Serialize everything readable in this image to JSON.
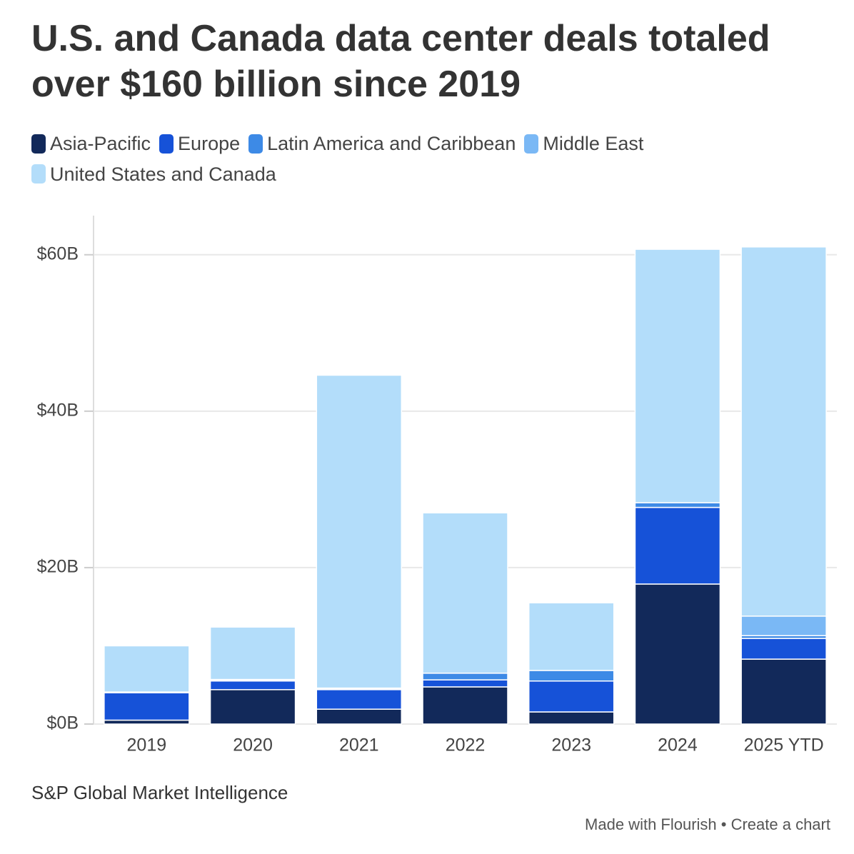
{
  "chart_data": {
    "type": "stacked_bar",
    "title": "U.S. and Canada data center deals totaled over $160 billion since 2019",
    "categories": [
      "2019",
      "2020",
      "2021",
      "2022",
      "2023",
      "2024",
      "2025 YTD"
    ],
    "series": [
      {
        "name": "Asia-Pacific",
        "color": "#12295a",
        "values": [
          0.5,
          4.4,
          1.9,
          4.75,
          1.55,
          17.9,
          8.3
        ]
      },
      {
        "name": "Europe",
        "color": "#1652d8",
        "values": [
          3.5,
          1.1,
          2.5,
          0.9,
          3.95,
          9.8,
          2.65
        ]
      },
      {
        "name": "Latin America and Caribbean",
        "color": "#3d8ae6",
        "values": [
          0.1,
          0.1,
          0.1,
          0.85,
          1.35,
          0.6,
          0.35
        ]
      },
      {
        "name": "Middle East",
        "color": "#7ab8f5",
        "values": [
          0,
          0.1,
          0.1,
          0,
          0,
          0,
          2.5
        ]
      },
      {
        "name": "United States and Canada",
        "color": "#b3ddfa",
        "values": [
          5.9,
          6.7,
          40.0,
          20.5,
          8.65,
          32.4,
          47.2
        ]
      }
    ],
    "ylim": [
      0,
      65
    ],
    "yticks": [
      {
        "value": 0,
        "label": "$0B"
      },
      {
        "value": 20,
        "label": "$20B"
      },
      {
        "value": 40,
        "label": "$40B"
      },
      {
        "value": 60,
        "label": "$60B"
      }
    ],
    "grid": true,
    "source": "S&P Global Market Intelligence",
    "footer": "Made with Flourish • Create a chart"
  }
}
